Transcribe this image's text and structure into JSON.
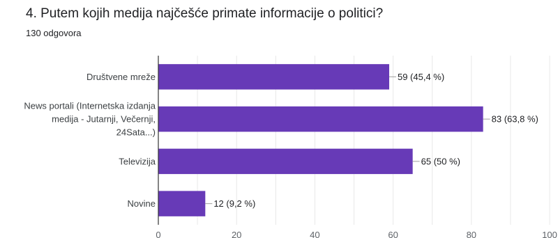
{
  "question": {
    "title": "4. Putem kojih medija najčešće primate informacije o politici?",
    "responses": "130 odgovora"
  },
  "chart_data": {
    "type": "bar",
    "orientation": "horizontal",
    "categories": [
      [
        "Društvene mreže"
      ],
      [
        "News portali (Internetska izdanja",
        "medija - Jutarnji, Večernji,",
        "24Sata...)"
      ],
      [
        "Televizija"
      ],
      [
        "Novine"
      ]
    ],
    "values": [
      59,
      83,
      65,
      12
    ],
    "data_labels": [
      "59 (45,4 %)",
      "83 (63,8 %)",
      "65 (50 %)",
      "12 (9,2 %)"
    ],
    "xlim": [
      0,
      100
    ],
    "x_ticks": [
      0,
      20,
      40,
      60,
      80,
      100
    ],
    "grid": true,
    "bar_color": "#673ab7"
  }
}
